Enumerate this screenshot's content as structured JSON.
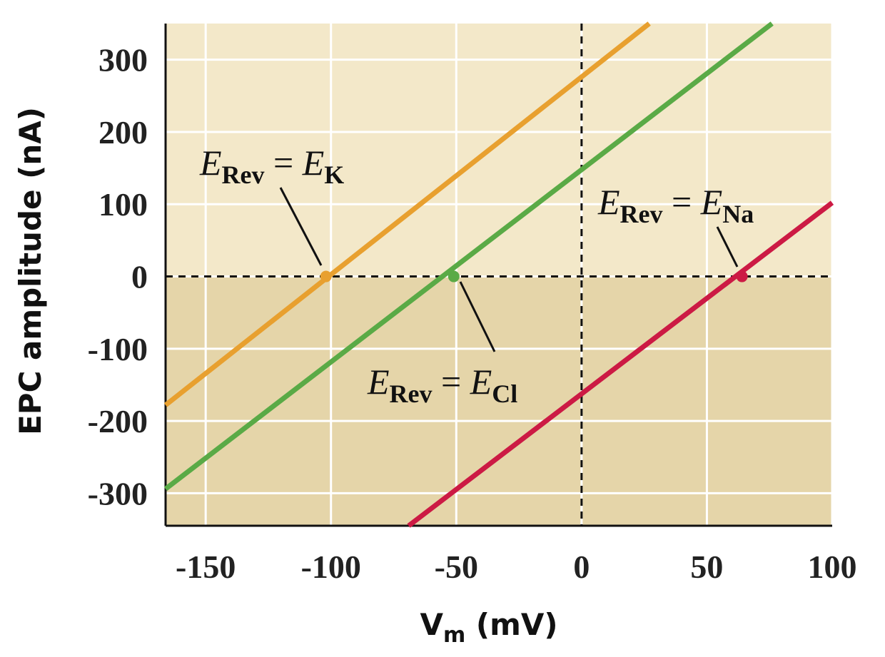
{
  "chart_data": {
    "type": "line",
    "xlabel": [
      {
        "text": "V",
        "style": "normal"
      },
      {
        "text": "m",
        "style": "sub"
      },
      {
        "text": " (mV)",
        "style": "normal"
      }
    ],
    "ylabel": "EPC amplitude (nA)",
    "xlim": [
      -166,
      100
    ],
    "ylim": [
      -345,
      350
    ],
    "xticks": [
      -150,
      -100,
      -50,
      0,
      50,
      100
    ],
    "yticks": [
      -300,
      -200,
      -100,
      0,
      100,
      200,
      300
    ],
    "grid": true,
    "background": {
      "positive": "#f3e8c9",
      "negative": "#e5d5a9"
    },
    "series": [
      {
        "color": "#e8a02f",
        "x": [
          -166,
          27
        ],
        "values": [
          -178,
          350
        ],
        "reversal_x": -102,
        "reversal_y": 0
      },
      {
        "color": "#5aaa46",
        "x": [
          -166,
          76
        ],
        "values": [
          -294,
          350
        ],
        "reversal_x": -51,
        "reversal_y": 0
      },
      {
        "color": "#cc1a44",
        "x": [
          -69,
          100
        ],
        "values": [
          -345,
          102
        ],
        "reversal_x": 64,
        "reversal_y": 0
      }
    ],
    "annotations": [
      {
        "series": 0,
        "parts": [
          {
            "text": "E",
            "style": "italic"
          },
          {
            "text": "Rev",
            "style": "sub"
          },
          {
            "text": " = ",
            "style": "normal"
          },
          {
            "text": "E",
            "style": "italic"
          },
          {
            "text": "K",
            "style": "sub"
          }
        ]
      },
      {
        "series": 1,
        "parts": [
          {
            "text": "E",
            "style": "italic"
          },
          {
            "text": "Rev",
            "style": "sub"
          },
          {
            "text": " = ",
            "style": "normal"
          },
          {
            "text": "E",
            "style": "italic"
          },
          {
            "text": "Cl",
            "style": "sub"
          }
        ]
      },
      {
        "series": 2,
        "parts": [
          {
            "text": "E",
            "style": "italic"
          },
          {
            "text": "Rev",
            "style": "sub"
          },
          {
            "text": " = ",
            "style": "normal"
          },
          {
            "text": "E",
            "style": "italic"
          },
          {
            "text": "Na",
            "style": "sub"
          }
        ]
      }
    ]
  }
}
